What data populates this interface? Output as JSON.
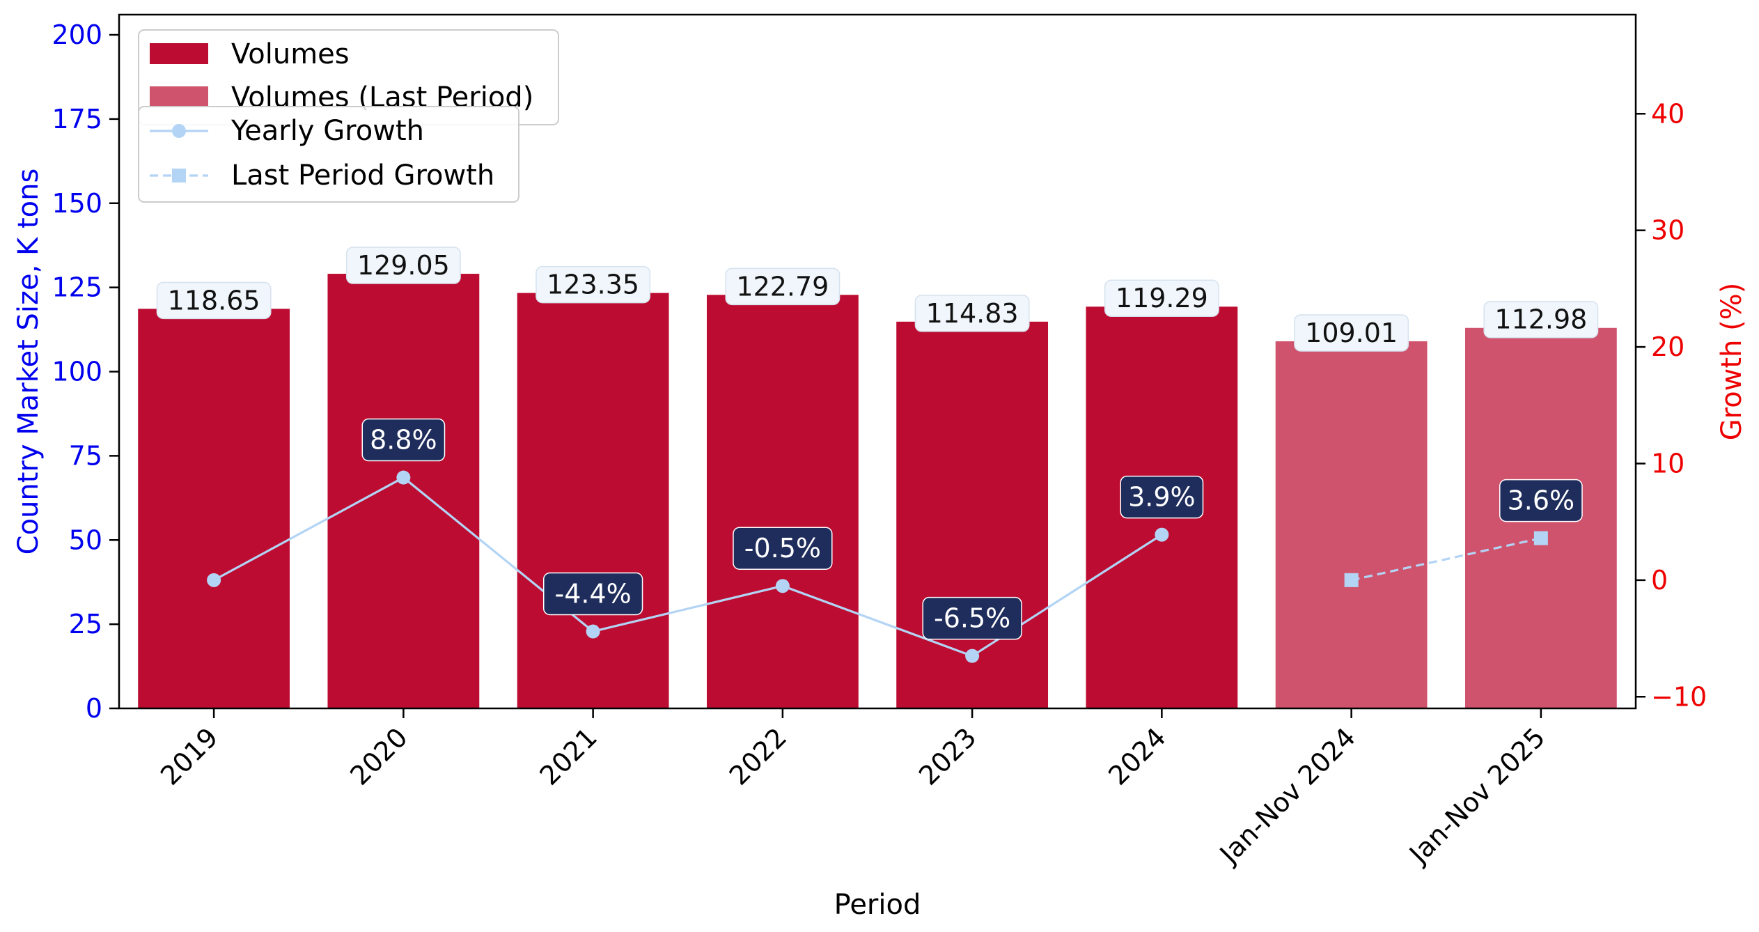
{
  "chart_data": {
    "type": "bar",
    "categories": [
      "2019",
      "2020",
      "2021",
      "2022",
      "2023",
      "2024",
      "Jan-Nov 2024",
      "Jan-Nov 2025"
    ],
    "series": [
      {
        "name": "Volumes",
        "color": "#bd0c31",
        "values": [
          118.65,
          129.05,
          123.35,
          122.79,
          114.83,
          119.29,
          null,
          null
        ],
        "labels": [
          "118.65",
          "129.05",
          "123.35",
          "122.79",
          "114.83",
          "119.29",
          null,
          null
        ]
      },
      {
        "name": "Volumes (Last Period)",
        "color": "#d0536d",
        "values": [
          null,
          null,
          null,
          null,
          null,
          null,
          109.01,
          112.98
        ],
        "labels": [
          null,
          null,
          null,
          null,
          null,
          null,
          "109.01",
          "112.98"
        ]
      }
    ],
    "growth_series": [
      {
        "name": "Yearly Growth",
        "axis": "right",
        "style": "solid",
        "marker": "circle",
        "color": "#b3d4f5",
        "values": [
          0,
          8.8,
          -4.4,
          -0.5,
          -6.5,
          3.9,
          null,
          null
        ],
        "labels": [
          null,
          "8.8%",
          "-4.4%",
          "-0.5%",
          "-6.5%",
          "3.9%",
          null,
          null
        ]
      },
      {
        "name": "Last Period Growth",
        "axis": "right",
        "style": "dashed",
        "marker": "square",
        "color": "#b3d4f5",
        "values": [
          null,
          null,
          null,
          null,
          null,
          null,
          0,
          3.6
        ],
        "labels": [
          null,
          null,
          null,
          null,
          null,
          null,
          null,
          "3.6%"
        ]
      }
    ],
    "xlabel": "Period",
    "ylabel": "Country Market Size, K tons",
    "y2label": "Growth (%)",
    "ylim": [
      0,
      206
    ],
    "y2lim": [
      -11,
      48.5
    ],
    "yticks": [
      0,
      25,
      50,
      75,
      100,
      125,
      150,
      175,
      200
    ],
    "y2ticks": [
      -10,
      0,
      10,
      20,
      30,
      40
    ],
    "legend_placement": "upper-left",
    "grid": false,
    "colors": {
      "left_axis": "#0000ee",
      "right_axis": "#ee0000",
      "label_box_fill": "#f0f6fb",
      "growth_box_fill": "#1f2d5c"
    }
  }
}
